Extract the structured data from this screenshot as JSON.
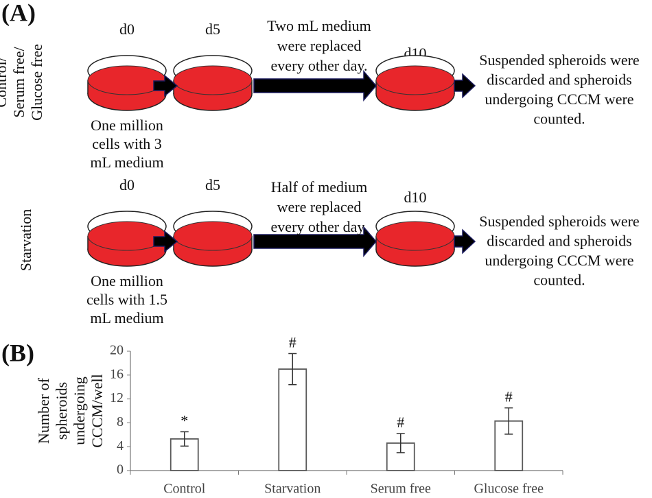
{
  "panel_a": {
    "label": "(A)",
    "rows": [
      {
        "group": [
          "Control/",
          "Serum free/",
          "Glucose free"
        ],
        "days": [
          "d0",
          "d5",
          "d10"
        ],
        "medium": [
          "Two mL medium",
          "were replaced",
          "every other day."
        ],
        "seeding": [
          "One million",
          "cells with 3",
          "mL medium"
        ],
        "outcome": [
          "Suspended spheroids were",
          "discarded and spheroids",
          "undergoing CCCM were",
          "counted."
        ]
      },
      {
        "group": [
          "Starvation"
        ],
        "days": [
          "d0",
          "d5",
          "d10"
        ],
        "medium": [
          "Half of medium",
          "were replaced",
          "every other day."
        ],
        "seeding": [
          "One million",
          "cells with 1.5",
          "mL medium"
        ],
        "outcome": [
          "Suspended spheroids were",
          "discarded and spheroids",
          "undergoing CCCM were",
          "counted."
        ]
      }
    ]
  },
  "panel_b": {
    "label": "(B)"
  },
  "chart_data": {
    "type": "bar",
    "categories": [
      "Control",
      "Starvation",
      "Serum free",
      "Glucose free"
    ],
    "values": [
      5.3,
      17,
      4.6,
      8.3
    ],
    "errors": [
      1.2,
      2.6,
      1.6,
      2.2
    ],
    "annotations": [
      "*",
      "#",
      "#",
      "#"
    ],
    "ylabel": [
      "Number of",
      "spheroids",
      "undergoing",
      "CCCM/well"
    ],
    "ylim": [
      0,
      20
    ],
    "yticks": [
      0,
      4,
      8,
      12,
      16,
      20
    ],
    "color": "#ffffff",
    "edge_color": "#595959"
  }
}
